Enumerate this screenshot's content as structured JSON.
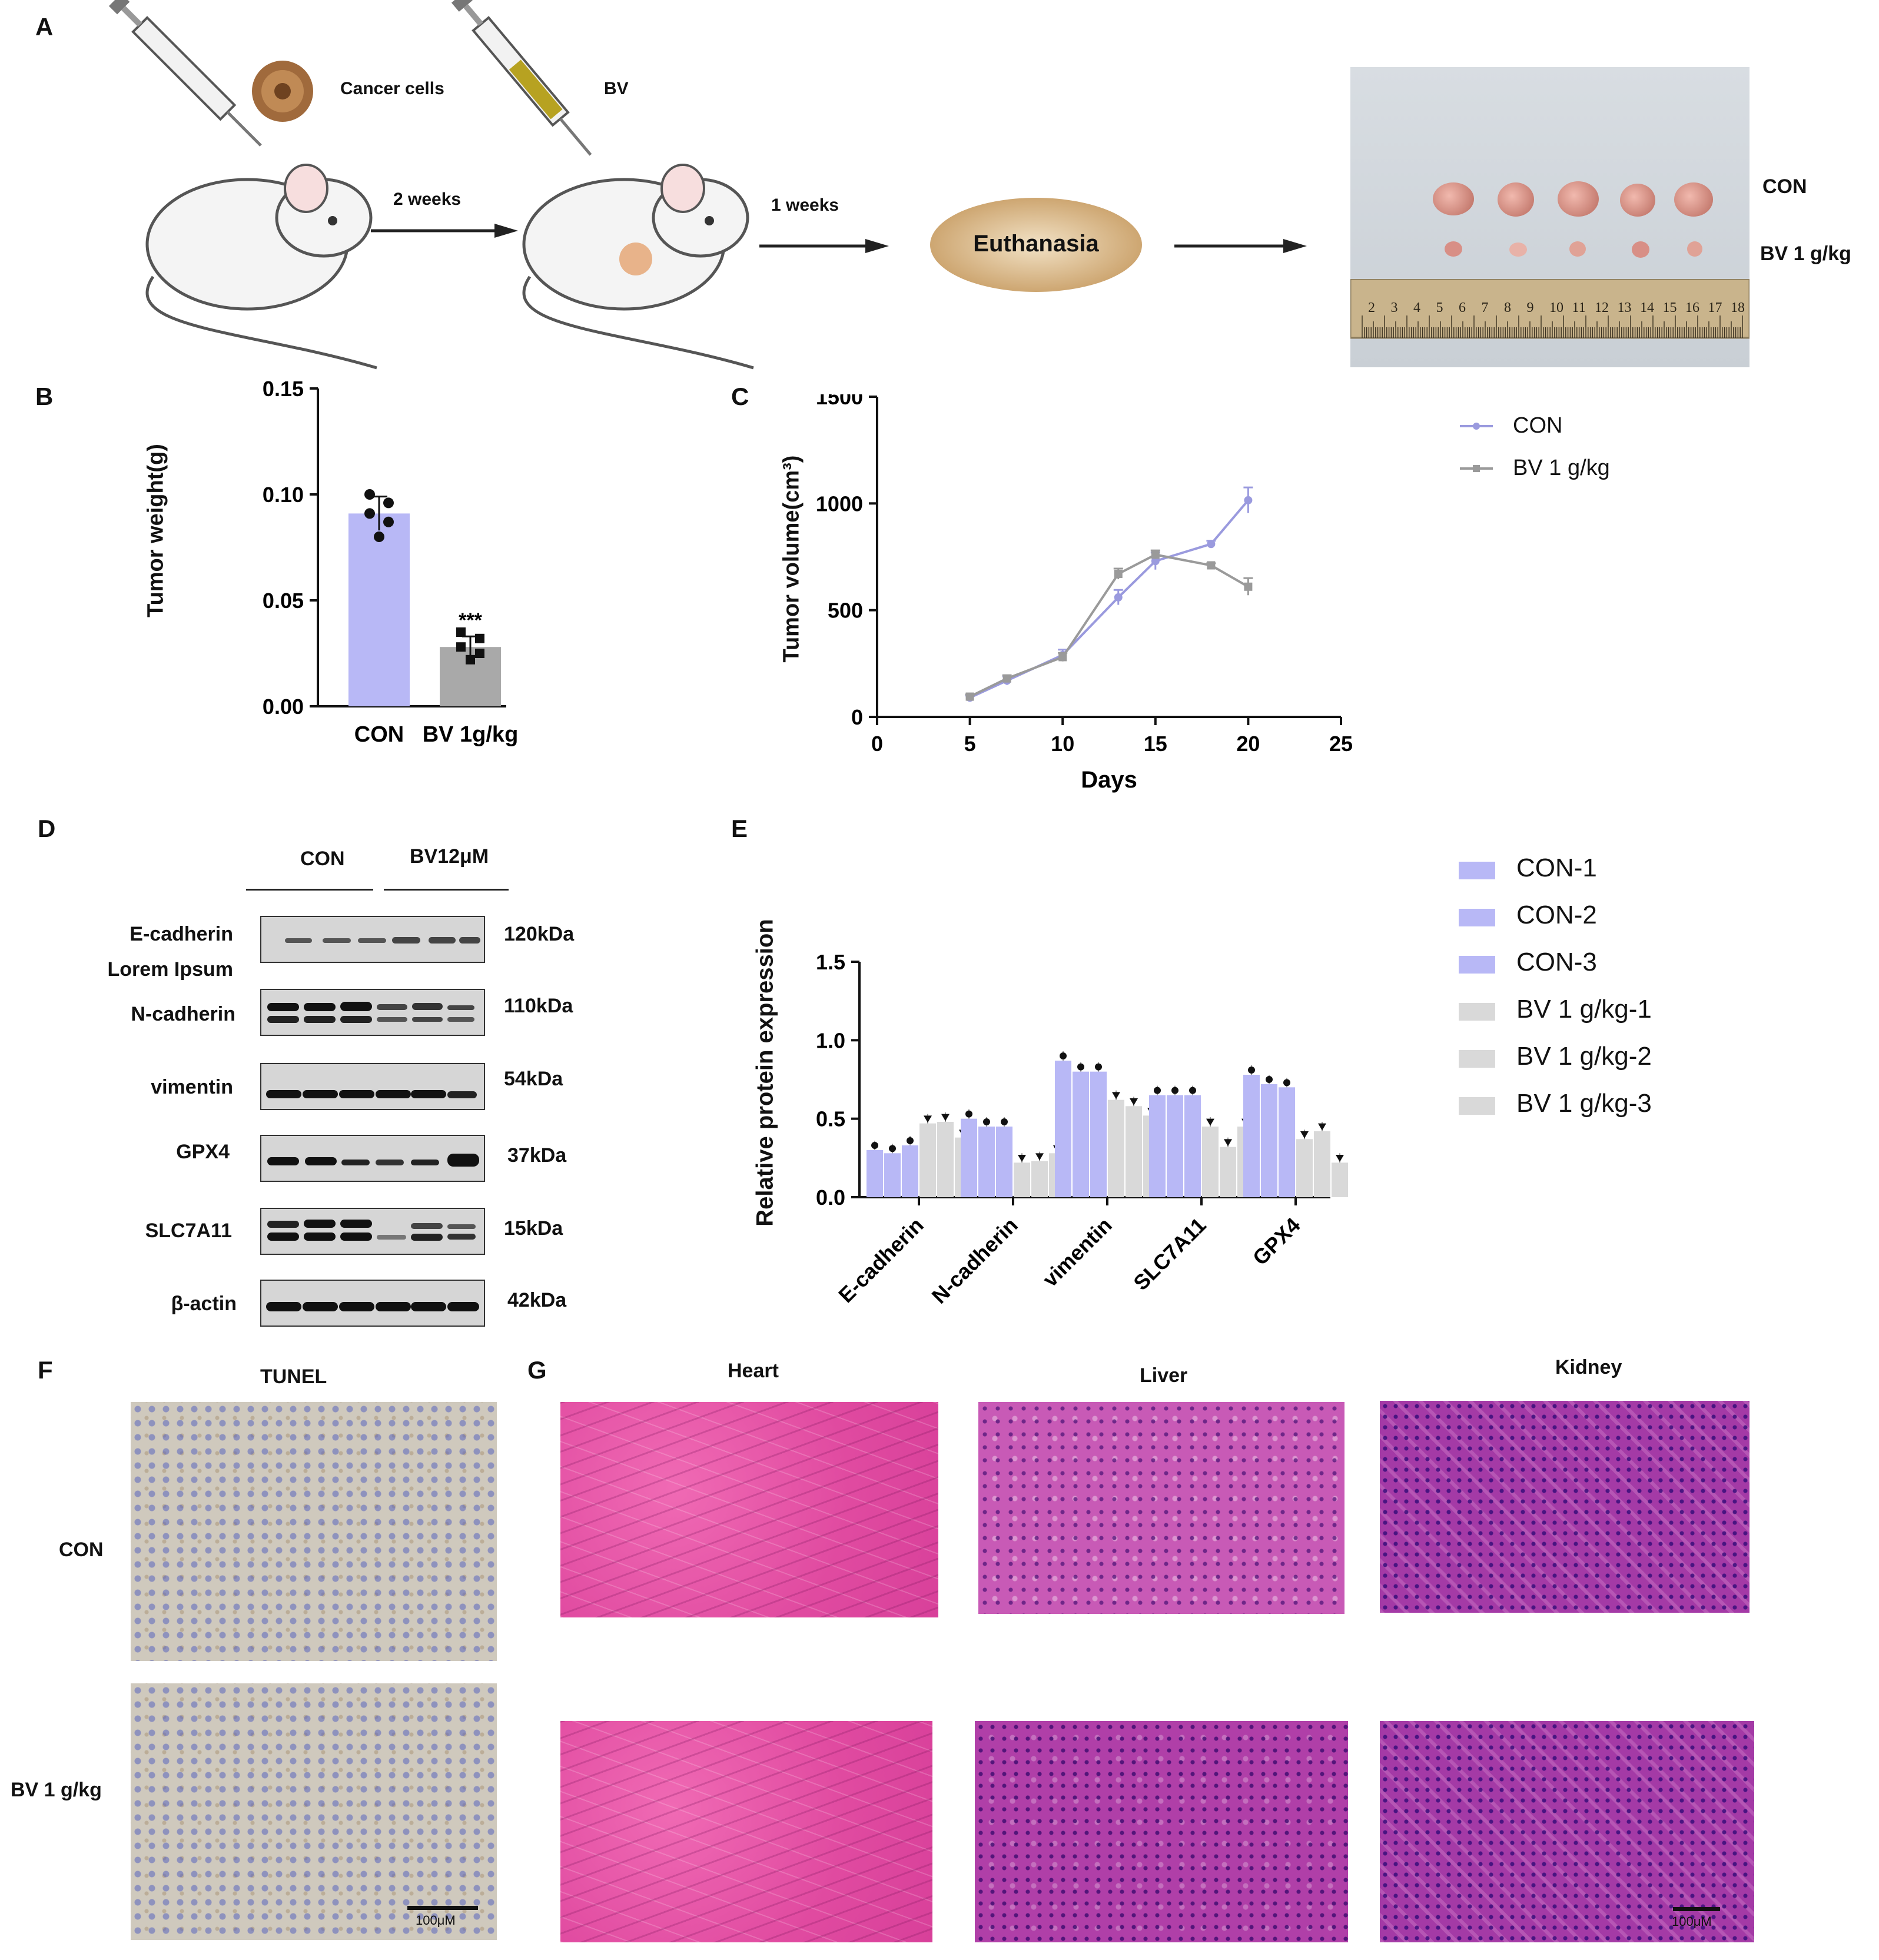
{
  "panel_labels": {
    "a": "A",
    "b": "B",
    "c": "C",
    "d": "D",
    "e": "E",
    "f": "F",
    "g": "G"
  },
  "panel_a": {
    "injection_1_label": "Cancer cells",
    "injection_2_label": "BV",
    "step_1_label": "2 weeks",
    "step_2_label": "1 weeks",
    "endpoint_label": "Euthanasia",
    "photo_row_1_label": "CON",
    "photo_row_2_label": "BV 1 g/kg",
    "ruler_numbers": [
      "2",
      "3",
      "4",
      "5",
      "6",
      "7",
      "8",
      "9",
      "10",
      "11",
      "12",
      "13",
      "14",
      "15",
      "16",
      "17",
      "18"
    ]
  },
  "panel_b": {
    "chart_data": {
      "type": "bar",
      "categories": [
        "CON",
        "BV 1g/kg"
      ],
      "values": [
        0.091,
        0.028
      ],
      "errors": [
        0.008,
        0.005
      ],
      "points": [
        [
          0.1,
          0.096,
          0.091,
          0.087,
          0.08
        ],
        [
          0.035,
          0.032,
          0.028,
          0.025,
          0.022
        ]
      ],
      "colors": [
        "#b8b8f6",
        "#a9a9a9"
      ],
      "significance": [
        "",
        "***"
      ],
      "ylabel": "Tumor weight(g)",
      "ylim": [
        0,
        0.15
      ],
      "yticks": [
        "0.00",
        "0.05",
        "0.10",
        "0.15"
      ]
    }
  },
  "panel_c": {
    "chart_data": {
      "type": "line",
      "x": [
        5,
        7,
        10,
        13,
        15,
        18,
        20
      ],
      "series": [
        {
          "name": "CON",
          "values": [
            90,
            170,
            290,
            560,
            730,
            810,
            1015
          ],
          "errors": [
            10,
            20,
            25,
            35,
            40,
            15,
            60
          ],
          "color": "#9a9ade"
        },
        {
          "name": "BV 1 g/kg",
          "values": [
            95,
            180,
            280,
            670,
            760,
            710,
            610
          ],
          "errors": [
            10,
            15,
            20,
            25,
            20,
            10,
            40
          ],
          "color": "#9a9a9a"
        }
      ],
      "xlabel": "Days",
      "ylabel": "Tumor volume(cm³)",
      "xlim": [
        0,
        25
      ],
      "ylim": [
        0,
        1500
      ],
      "xticks": [
        "0",
        "5",
        "10",
        "15",
        "20",
        "25"
      ],
      "yticks": [
        "0",
        "500",
        "1000",
        "1500"
      ],
      "legend": "right"
    }
  },
  "panel_d": {
    "group_1": "CON",
    "group_2": "BV12μM",
    "rows": [
      {
        "protein": "E-cadherin",
        "size": "120kDa"
      },
      {
        "protein": "N-cadherin",
        "size": "110kDa"
      },
      {
        "protein": "vimentin",
        "size": "54kDa"
      },
      {
        "protein": "GPX4",
        "size": "37kDa"
      },
      {
        "protein": "SLC7A11",
        "size": "15kDa"
      },
      {
        "protein": "β-actin",
        "size": "42kDa"
      }
    ],
    "extra_label": "Lorem Ipsum"
  },
  "panel_e": {
    "chart_data": {
      "type": "bar",
      "categories": [
        "E-cadherin",
        "N-cadherin",
        "vimentin",
        "SLC7A11",
        "GPX4"
      ],
      "series": [
        {
          "name": "CON-1",
          "values": [
            0.3,
            0.5,
            0.87,
            0.65,
            0.78
          ],
          "color": "#b8b8f6"
        },
        {
          "name": "CON-2",
          "values": [
            0.28,
            0.45,
            0.8,
            0.65,
            0.72
          ],
          "color": "#b8b8f6"
        },
        {
          "name": "CON-3",
          "values": [
            0.33,
            0.45,
            0.8,
            0.65,
            0.7
          ],
          "color": "#b8b8f6"
        },
        {
          "name": "BV 1 g/kg-1",
          "values": [
            0.47,
            0.22,
            0.62,
            0.45,
            0.37
          ],
          "color": "#d9d9d9"
        },
        {
          "name": "BV 1 g/kg-2",
          "values": [
            0.48,
            0.23,
            0.58,
            0.32,
            0.42
          ],
          "color": "#d9d9d9"
        },
        {
          "name": "BV 1 g/kg-3",
          "values": [
            0.38,
            0.28,
            0.52,
            0.45,
            0.22
          ],
          "color": "#d9d9d9"
        }
      ],
      "ylabel": "Relative protein expression",
      "ylim": [
        0,
        1.5
      ],
      "yticks": [
        "0.0",
        "0.5",
        "1.0",
        "1.5"
      ],
      "legend": "right"
    }
  },
  "panel_f": {
    "title": "TUNEL",
    "row_1": "CON",
    "row_2": "BV 1 g/kg",
    "scale_bar": "100μM"
  },
  "panel_g": {
    "col_1": "Heart",
    "col_2": "Liver",
    "col_3": "Kidney",
    "scale_bar": "100μM"
  }
}
